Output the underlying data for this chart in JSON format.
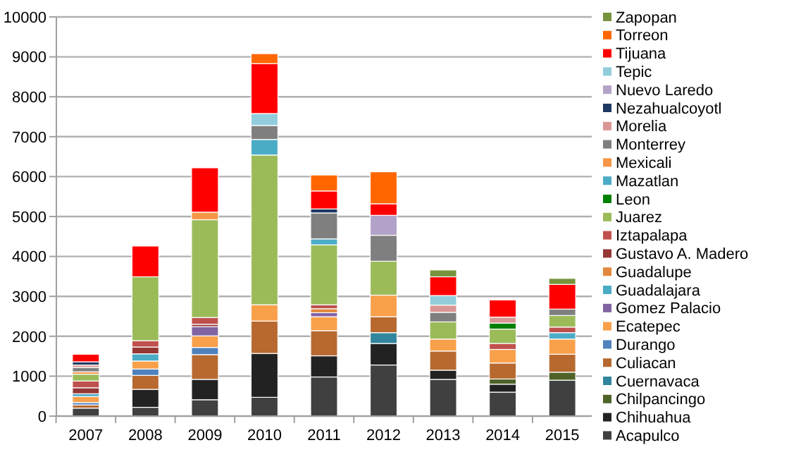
{
  "chart_data": {
    "type": "bar",
    "stacked": true,
    "categories": [
      "2007",
      "2008",
      "2009",
      "2010",
      "2011",
      "2012",
      "2013",
      "2014",
      "2015"
    ],
    "ylim": [
      0,
      10000
    ],
    "yticks": [
      0,
      1000,
      2000,
      3000,
      4000,
      5000,
      6000,
      7000,
      8000,
      9000,
      10000
    ],
    "grid": "y",
    "legend": "right",
    "series": [
      {
        "name": "Acapulco",
        "color": "#404040",
        "values": [
          200,
          220,
          410,
          470,
          980,
          1280,
          920,
          600,
          900
        ]
      },
      {
        "name": "Chihuahua",
        "color": "#222222",
        "values": [
          0,
          450,
          510,
          1100,
          530,
          540,
          230,
          200,
          0
        ]
      },
      {
        "name": "Chilpancingo",
        "color": "#4f6228",
        "values": [
          0,
          0,
          0,
          0,
          0,
          0,
          0,
          130,
          200
        ]
      },
      {
        "name": "Cuernavaca",
        "color": "#31859c",
        "values": [
          0,
          0,
          0,
          0,
          0,
          270,
          0,
          0,
          0
        ]
      },
      {
        "name": "Culiacan",
        "color": "#b7692f",
        "values": [
          80,
          350,
          620,
          810,
          630,
          400,
          480,
          400,
          450
        ]
      },
      {
        "name": "Durango",
        "color": "#4f81bd",
        "values": [
          60,
          160,
          180,
          0,
          0,
          0,
          0,
          0,
          0
        ]
      },
      {
        "name": "Ecatepec",
        "color": "#f9a04b",
        "values": [
          150,
          200,
          290,
          410,
          350,
          540,
          300,
          340,
          380
        ]
      },
      {
        "name": "Gomez Palacio",
        "color": "#8064a2",
        "values": [
          0,
          0,
          230,
          0,
          100,
          0,
          0,
          0,
          0
        ]
      },
      {
        "name": "Guadalajara",
        "color": "#4bacc6",
        "values": [
          70,
          180,
          0,
          0,
          0,
          0,
          0,
          0,
          160
        ]
      },
      {
        "name": "Guadalupe",
        "color": "#e3883e",
        "values": [
          0,
          0,
          0,
          0,
          100,
          0,
          0,
          0,
          0
        ]
      },
      {
        "name": "Gustavo A. Madero",
        "color": "#953735",
        "values": [
          150,
          170,
          60,
          0,
          0,
          0,
          0,
          0,
          0
        ]
      },
      {
        "name": "Iztapalapa",
        "color": "#c0504d",
        "values": [
          170,
          160,
          170,
          0,
          100,
          0,
          0,
          150,
          140
        ]
      },
      {
        "name": "Juarez",
        "color": "#9bbb59",
        "values": [
          170,
          1600,
          2450,
          3750,
          1500,
          850,
          430,
          360,
          290
        ]
      },
      {
        "name": "Leon",
        "color": "#008000",
        "values": [
          0,
          0,
          0,
          0,
          0,
          0,
          0,
          150,
          0
        ]
      },
      {
        "name": "Mazatlan",
        "color": "#4bacc6",
        "values": [
          0,
          0,
          0,
          390,
          150,
          0,
          0,
          0,
          0
        ]
      },
      {
        "name": "Mexicali",
        "color": "#f79646",
        "values": [
          60,
          0,
          190,
          0,
          0,
          0,
          0,
          0,
          0
        ]
      },
      {
        "name": "Monterrey",
        "color": "#7f7f7f",
        "values": [
          110,
          0,
          0,
          350,
          650,
          650,
          240,
          0,
          160
        ]
      },
      {
        "name": "Morelia",
        "color": "#d99694",
        "values": [
          60,
          0,
          0,
          0,
          0,
          0,
          180,
          150,
          0
        ]
      },
      {
        "name": "Nezahualcoyotl",
        "color": "#1f3864",
        "values": [
          80,
          0,
          0,
          0,
          100,
          0,
          0,
          0,
          0
        ]
      },
      {
        "name": "Nuevo Laredo",
        "color": "#b3a2c7",
        "values": [
          0,
          0,
          0,
          0,
          0,
          500,
          0,
          0,
          0
        ]
      },
      {
        "name": "Tepic",
        "color": "#92cddc",
        "values": [
          0,
          0,
          0,
          300,
          0,
          0,
          240,
          0,
          0
        ]
      },
      {
        "name": "Tijuana",
        "color": "#ff0000",
        "values": [
          190,
          770,
          1110,
          1250,
          450,
          290,
          470,
          430,
          620
        ]
      },
      {
        "name": "Torreon",
        "color": "#ff6600",
        "values": [
          0,
          0,
          0,
          250,
          400,
          800,
          0,
          0,
          0
        ]
      },
      {
        "name": "Zapopan",
        "color": "#77933c",
        "values": [
          0,
          0,
          0,
          0,
          0,
          0,
          170,
          0,
          150
        ]
      }
    ]
  }
}
